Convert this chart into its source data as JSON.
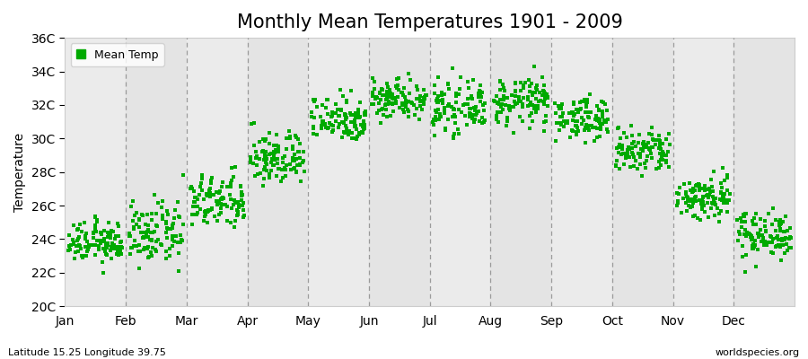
{
  "title": "Monthly Mean Temperatures 1901 - 2009",
  "ylabel": "Temperature",
  "xlabel": "",
  "subtitle_left": "Latitude 15.25 Longitude 39.75",
  "subtitle_right": "worldspecies.org",
  "legend_label": "Mean Temp",
  "ylim": [
    20,
    36
  ],
  "ytick_labels": [
    "20C",
    "22C",
    "24C",
    "26C",
    "28C",
    "30C",
    "32C",
    "34C",
    "36C"
  ],
  "ytick_values": [
    20,
    22,
    24,
    26,
    28,
    30,
    32,
    34,
    36
  ],
  "month_names": [
    "Jan",
    "Feb",
    "Mar",
    "Apr",
    "May",
    "Jun",
    "Jul",
    "Aug",
    "Sep",
    "Oct",
    "Nov",
    "Dec"
  ],
  "marker_color": "#00aa00",
  "marker_size": 6,
  "background_color": "#ffffff",
  "panel_bg_color": "#f0f0f0",
  "dashed_line_color": "#888888",
  "title_fontsize": 15,
  "axis_fontsize": 10,
  "tick_fontsize": 10,
  "mean_temps": [
    23.8,
    24.3,
    26.2,
    28.8,
    31.2,
    32.4,
    31.8,
    32.2,
    31.2,
    29.2,
    26.5,
    24.3
  ],
  "std_temps": [
    0.6,
    0.9,
    0.8,
    0.8,
    0.7,
    0.6,
    0.7,
    0.7,
    0.6,
    0.7,
    0.7,
    0.7
  ],
  "n_years": 109
}
